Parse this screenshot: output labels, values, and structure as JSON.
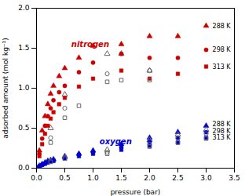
{
  "chart_data": {
    "type": "scatter",
    "xlabel": "pressure (bar)",
    "ylabel": "adsorbed amount (mol kg⁻¹)",
    "xlim": [
      0,
      3.5
    ],
    "ylim": [
      0,
      2.0
    ],
    "xticks": [
      {
        "value": 0,
        "label": "0.0"
      },
      0.5,
      {
        "value": 1,
        "label": "1.0"
      },
      1.5,
      {
        "value": 2,
        "label": "2.0"
      },
      2.5,
      {
        "value": 3,
        "label": "3.0"
      },
      3.5
    ],
    "yticks": [
      {
        "value": 0,
        "label": "0.0"
      },
      0.5,
      {
        "value": 1,
        "label": "1.0"
      },
      1.5,
      {
        "value": 2,
        "label": "2.0"
      }
    ],
    "grid": false,
    "series": [
      {
        "color": "#cc0000",
        "marker": "triangle",
        "x": [
          0.05,
          0.1,
          0.15,
          0.2,
          0.25,
          0.3,
          0.4,
          0.5,
          0.75,
          1.0,
          1.5,
          2.0,
          2.5,
          3.0
        ],
        "values": [
          0.22,
          0.47,
          0.65,
          0.8,
          0.93,
          1.03,
          1.15,
          1.25,
          1.38,
          1.53,
          1.55,
          1.65,
          1.65,
          1.78
        ]
      },
      {
        "color": "#666666",
        "marker": "triangle-open",
        "x": [
          0.25,
          0.5,
          1.25,
          1.5,
          2.0
        ],
        "values": [
          0.5,
          0.92,
          1.43,
          1.43,
          1.22
        ]
      },
      {
        "color": "#cc0000",
        "marker": "circle",
        "x": [
          0.05,
          0.1,
          0.15,
          0.2,
          0.25,
          0.3,
          0.4,
          0.5,
          0.75,
          1.0,
          1.5,
          2.0,
          2.5,
          3.0
        ],
        "values": [
          0.18,
          0.37,
          0.53,
          0.65,
          0.75,
          0.85,
          0.95,
          1.03,
          1.2,
          1.32,
          1.43,
          1.38,
          1.38,
          1.48
        ]
      },
      {
        "color": "#666666",
        "marker": "circle-open",
        "x": [
          0.25,
          0.5,
          1.25,
          2.0
        ],
        "values": [
          0.38,
          0.75,
          1.18,
          1.22
        ]
      },
      {
        "color": "#cc0000",
        "marker": "square",
        "x": [
          0.05,
          0.1,
          0.15,
          0.2,
          0.25,
          0.3,
          0.4,
          0.5,
          0.75,
          1.0,
          1.5,
          2.0,
          2.5,
          3.0
        ],
        "values": [
          0.15,
          0.3,
          0.43,
          0.53,
          0.62,
          0.7,
          0.8,
          0.88,
          1.02,
          1.12,
          1.22,
          1.12,
          1.18,
          1.27
        ]
      },
      {
        "color": "#666666",
        "marker": "square-open",
        "x": [
          0.25,
          0.5,
          0.75,
          1.25,
          1.5,
          2.0
        ],
        "values": [
          0.32,
          0.63,
          0.78,
          1.08,
          1.1,
          1.1
        ]
      },
      {
        "color": "#0000cc",
        "marker": "triangle",
        "x": [
          0.05,
          0.1,
          0.15,
          0.2,
          0.25,
          0.3,
          0.5,
          0.75,
          1.0,
          1.5,
          2.0,
          2.5,
          3.0
        ],
        "values": [
          0.03,
          0.05,
          0.07,
          0.09,
          0.1,
          0.11,
          0.14,
          0.18,
          0.22,
          0.3,
          0.38,
          0.45,
          0.53
        ]
      },
      {
        "color": "#666666",
        "marker": "triangle-open",
        "x": [
          0.25,
          0.5,
          1.25,
          2.0,
          2.5,
          3.0
        ],
        "values": [
          0.1,
          0.15,
          0.23,
          0.35,
          0.42,
          0.48
        ]
      },
      {
        "color": "#0000cc",
        "marker": "circle",
        "x": [
          0.05,
          0.1,
          0.15,
          0.2,
          0.25,
          0.3,
          0.5,
          0.75,
          1.0,
          1.5,
          2.0,
          2.5,
          3.0
        ],
        "values": [
          0.025,
          0.045,
          0.06,
          0.08,
          0.09,
          0.1,
          0.13,
          0.17,
          0.2,
          0.26,
          0.33,
          0.38,
          0.45
        ]
      },
      {
        "color": "#666666",
        "marker": "circle-open",
        "x": [
          0.25,
          0.5,
          1.25,
          2.0,
          2.5,
          3.0
        ],
        "values": [
          0.09,
          0.13,
          0.2,
          0.3,
          0.37,
          0.43
        ]
      },
      {
        "color": "#0000cc",
        "marker": "square",
        "x": [
          0.05,
          0.1,
          0.15,
          0.2,
          0.25,
          0.3,
          0.5,
          0.75,
          1.0,
          1.5,
          2.0,
          2.5,
          3.0
        ],
        "values": [
          0.02,
          0.04,
          0.055,
          0.07,
          0.08,
          0.09,
          0.12,
          0.15,
          0.18,
          0.23,
          0.28,
          0.32,
          0.38
        ]
      },
      {
        "color": "#666666",
        "marker": "square-open",
        "x": [
          0.25,
          0.5,
          1.25,
          2.0,
          2.5,
          3.0
        ],
        "values": [
          0.08,
          0.12,
          0.18,
          0.27,
          0.32,
          0.37
        ]
      }
    ],
    "annotations": [
      {
        "text": "288 K",
        "x": 3.07,
        "y": 1.78
      },
      {
        "text": "298 K",
        "x": 3.07,
        "y": 1.48
      },
      {
        "text": "313 K",
        "x": 3.07,
        "y": 1.27
      },
      {
        "text": "288 K",
        "x": 3.07,
        "y": 0.55
      },
      {
        "text": "298 K",
        "x": 3.07,
        "y": 0.46
      },
      {
        "text": "313 K",
        "x": 3.07,
        "y": 0.38
      },
      {
        "text": "nitrogen",
        "x": 0.95,
        "y": 1.55,
        "color": "#cc0000"
      },
      {
        "text": "oxygen",
        "x": 1.4,
        "y": 0.33,
        "color": "#0000cc"
      }
    ]
  }
}
